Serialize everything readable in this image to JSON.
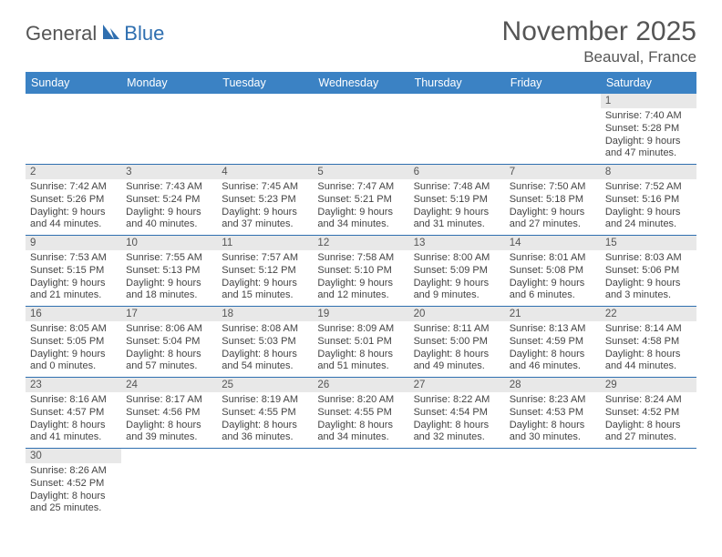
{
  "logo": {
    "part1": "General",
    "part2": "Blue"
  },
  "title": "November 2025",
  "location": "Beauval, France",
  "colors": {
    "header_bg": "#3b82c4",
    "header_text": "#ffffff",
    "daynum_bg": "#e8e8e8",
    "border": "#2f6fb0",
    "title_color": "#555555",
    "text_color": "#444444",
    "logo_blue": "#2f6fb0",
    "logo_gray": "#555555",
    "page_bg": "#ffffff"
  },
  "day_headers": [
    "Sunday",
    "Monday",
    "Tuesday",
    "Wednesday",
    "Thursday",
    "Friday",
    "Saturday"
  ],
  "weeks": [
    [
      {
        "n": "",
        "sr": "",
        "ss": "",
        "dl": ""
      },
      {
        "n": "",
        "sr": "",
        "ss": "",
        "dl": ""
      },
      {
        "n": "",
        "sr": "",
        "ss": "",
        "dl": ""
      },
      {
        "n": "",
        "sr": "",
        "ss": "",
        "dl": ""
      },
      {
        "n": "",
        "sr": "",
        "ss": "",
        "dl": ""
      },
      {
        "n": "",
        "sr": "",
        "ss": "",
        "dl": ""
      },
      {
        "n": "1",
        "sr": "Sunrise: 7:40 AM",
        "ss": "Sunset: 5:28 PM",
        "dl": "Daylight: 9 hours and 47 minutes."
      }
    ],
    [
      {
        "n": "2",
        "sr": "Sunrise: 7:42 AM",
        "ss": "Sunset: 5:26 PM",
        "dl": "Daylight: 9 hours and 44 minutes."
      },
      {
        "n": "3",
        "sr": "Sunrise: 7:43 AM",
        "ss": "Sunset: 5:24 PM",
        "dl": "Daylight: 9 hours and 40 minutes."
      },
      {
        "n": "4",
        "sr": "Sunrise: 7:45 AM",
        "ss": "Sunset: 5:23 PM",
        "dl": "Daylight: 9 hours and 37 minutes."
      },
      {
        "n": "5",
        "sr": "Sunrise: 7:47 AM",
        "ss": "Sunset: 5:21 PM",
        "dl": "Daylight: 9 hours and 34 minutes."
      },
      {
        "n": "6",
        "sr": "Sunrise: 7:48 AM",
        "ss": "Sunset: 5:19 PM",
        "dl": "Daylight: 9 hours and 31 minutes."
      },
      {
        "n": "7",
        "sr": "Sunrise: 7:50 AM",
        "ss": "Sunset: 5:18 PM",
        "dl": "Daylight: 9 hours and 27 minutes."
      },
      {
        "n": "8",
        "sr": "Sunrise: 7:52 AM",
        "ss": "Sunset: 5:16 PM",
        "dl": "Daylight: 9 hours and 24 minutes."
      }
    ],
    [
      {
        "n": "9",
        "sr": "Sunrise: 7:53 AM",
        "ss": "Sunset: 5:15 PM",
        "dl": "Daylight: 9 hours and 21 minutes."
      },
      {
        "n": "10",
        "sr": "Sunrise: 7:55 AM",
        "ss": "Sunset: 5:13 PM",
        "dl": "Daylight: 9 hours and 18 minutes."
      },
      {
        "n": "11",
        "sr": "Sunrise: 7:57 AM",
        "ss": "Sunset: 5:12 PM",
        "dl": "Daylight: 9 hours and 15 minutes."
      },
      {
        "n": "12",
        "sr": "Sunrise: 7:58 AM",
        "ss": "Sunset: 5:10 PM",
        "dl": "Daylight: 9 hours and 12 minutes."
      },
      {
        "n": "13",
        "sr": "Sunrise: 8:00 AM",
        "ss": "Sunset: 5:09 PM",
        "dl": "Daylight: 9 hours and 9 minutes."
      },
      {
        "n": "14",
        "sr": "Sunrise: 8:01 AM",
        "ss": "Sunset: 5:08 PM",
        "dl": "Daylight: 9 hours and 6 minutes."
      },
      {
        "n": "15",
        "sr": "Sunrise: 8:03 AM",
        "ss": "Sunset: 5:06 PM",
        "dl": "Daylight: 9 hours and 3 minutes."
      }
    ],
    [
      {
        "n": "16",
        "sr": "Sunrise: 8:05 AM",
        "ss": "Sunset: 5:05 PM",
        "dl": "Daylight: 9 hours and 0 minutes."
      },
      {
        "n": "17",
        "sr": "Sunrise: 8:06 AM",
        "ss": "Sunset: 5:04 PM",
        "dl": "Daylight: 8 hours and 57 minutes."
      },
      {
        "n": "18",
        "sr": "Sunrise: 8:08 AM",
        "ss": "Sunset: 5:03 PM",
        "dl": "Daylight: 8 hours and 54 minutes."
      },
      {
        "n": "19",
        "sr": "Sunrise: 8:09 AM",
        "ss": "Sunset: 5:01 PM",
        "dl": "Daylight: 8 hours and 51 minutes."
      },
      {
        "n": "20",
        "sr": "Sunrise: 8:11 AM",
        "ss": "Sunset: 5:00 PM",
        "dl": "Daylight: 8 hours and 49 minutes."
      },
      {
        "n": "21",
        "sr": "Sunrise: 8:13 AM",
        "ss": "Sunset: 4:59 PM",
        "dl": "Daylight: 8 hours and 46 minutes."
      },
      {
        "n": "22",
        "sr": "Sunrise: 8:14 AM",
        "ss": "Sunset: 4:58 PM",
        "dl": "Daylight: 8 hours and 44 minutes."
      }
    ],
    [
      {
        "n": "23",
        "sr": "Sunrise: 8:16 AM",
        "ss": "Sunset: 4:57 PM",
        "dl": "Daylight: 8 hours and 41 minutes."
      },
      {
        "n": "24",
        "sr": "Sunrise: 8:17 AM",
        "ss": "Sunset: 4:56 PM",
        "dl": "Daylight: 8 hours and 39 minutes."
      },
      {
        "n": "25",
        "sr": "Sunrise: 8:19 AM",
        "ss": "Sunset: 4:55 PM",
        "dl": "Daylight: 8 hours and 36 minutes."
      },
      {
        "n": "26",
        "sr": "Sunrise: 8:20 AM",
        "ss": "Sunset: 4:55 PM",
        "dl": "Daylight: 8 hours and 34 minutes."
      },
      {
        "n": "27",
        "sr": "Sunrise: 8:22 AM",
        "ss": "Sunset: 4:54 PM",
        "dl": "Daylight: 8 hours and 32 minutes."
      },
      {
        "n": "28",
        "sr": "Sunrise: 8:23 AM",
        "ss": "Sunset: 4:53 PM",
        "dl": "Daylight: 8 hours and 30 minutes."
      },
      {
        "n": "29",
        "sr": "Sunrise: 8:24 AM",
        "ss": "Sunset: 4:52 PM",
        "dl": "Daylight: 8 hours and 27 minutes."
      }
    ],
    [
      {
        "n": "30",
        "sr": "Sunrise: 8:26 AM",
        "ss": "Sunset: 4:52 PM",
        "dl": "Daylight: 8 hours and 25 minutes."
      },
      {
        "n": "",
        "sr": "",
        "ss": "",
        "dl": ""
      },
      {
        "n": "",
        "sr": "",
        "ss": "",
        "dl": ""
      },
      {
        "n": "",
        "sr": "",
        "ss": "",
        "dl": ""
      },
      {
        "n": "",
        "sr": "",
        "ss": "",
        "dl": ""
      },
      {
        "n": "",
        "sr": "",
        "ss": "",
        "dl": ""
      },
      {
        "n": "",
        "sr": "",
        "ss": "",
        "dl": ""
      }
    ]
  ]
}
